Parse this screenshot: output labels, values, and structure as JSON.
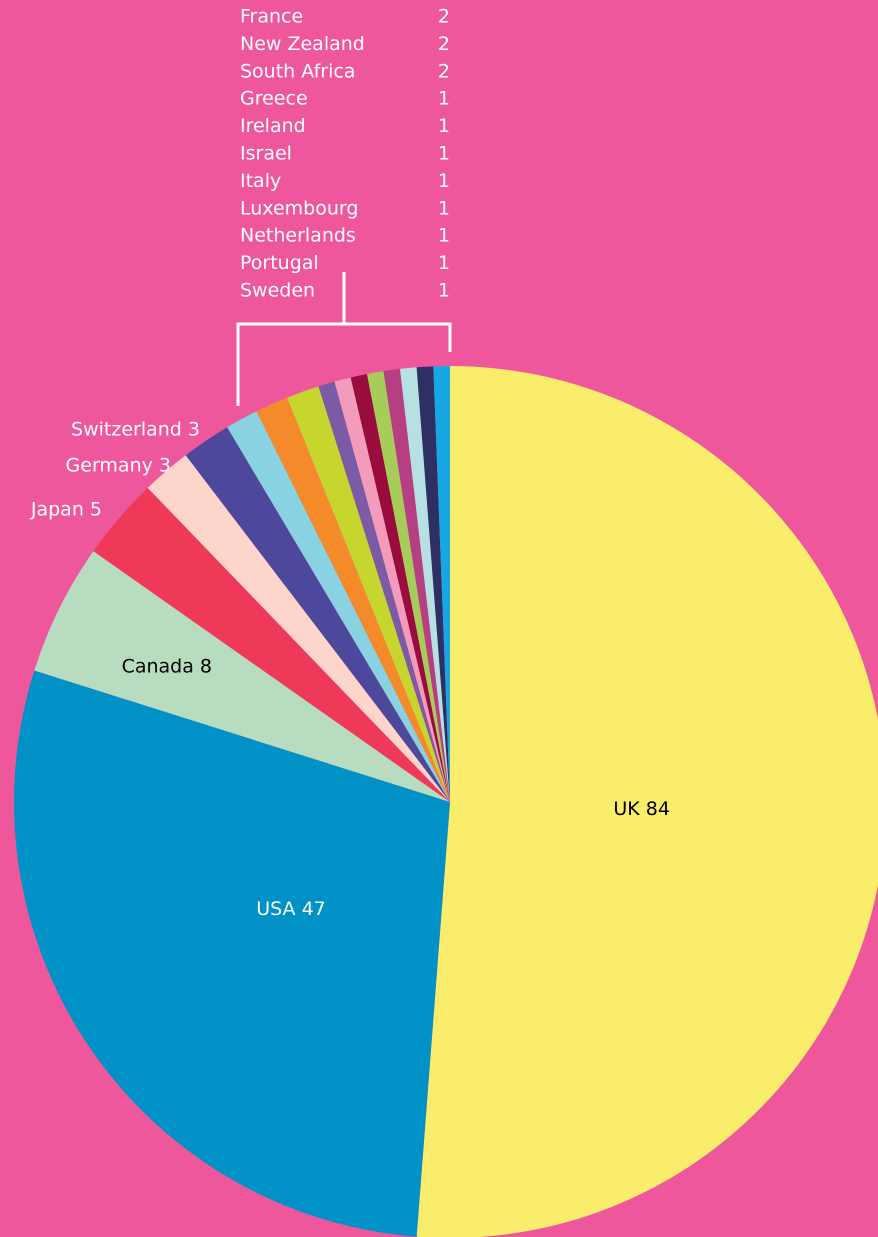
{
  "chart_data": {
    "type": "pie",
    "slices": [
      {
        "label": "UK",
        "value": 84,
        "color": "#f9ed6b",
        "text_color": "#000000"
      },
      {
        "label": "USA",
        "value": 47,
        "color": "#0092c6",
        "text_color": "#ffffff"
      },
      {
        "label": "Canada",
        "value": 8,
        "color": "#b7dcbf",
        "text_color": "#000000"
      },
      {
        "label": "Japan",
        "value": 5,
        "color": "#ee3a58",
        "text_color": "#ffffff"
      },
      {
        "label": "Germany",
        "value": 3,
        "color": "#fdd5cb",
        "text_color": "#ffffff"
      },
      {
        "label": "Switzerland",
        "value": 3,
        "color": "#4e489c",
        "text_color": "#ffffff"
      },
      {
        "label": "France",
        "value": 2,
        "color": "#88d2e2",
        "text_color": "#ffffff"
      },
      {
        "label": "New Zealand",
        "value": 2,
        "color": "#f48a2a",
        "text_color": "#ffffff"
      },
      {
        "label": "South Africa",
        "value": 2,
        "color": "#c6d62f",
        "text_color": "#ffffff"
      },
      {
        "label": "Greece",
        "value": 1,
        "color": "#7b5ba5",
        "text_color": "#ffffff"
      },
      {
        "label": "Ireland",
        "value": 1,
        "color": "#f29bbb",
        "text_color": "#ffffff"
      },
      {
        "label": "Israel",
        "value": 1,
        "color": "#990c3e",
        "text_color": "#ffffff"
      },
      {
        "label": "Italy",
        "value": 1,
        "color": "#a6cd57",
        "text_color": "#ffffff"
      },
      {
        "label": "Luxembourg",
        "value": 1,
        "color": "#b63e83",
        "text_color": "#ffffff"
      },
      {
        "label": "Netherlands",
        "value": 1,
        "color": "#b6e1e3",
        "text_color": "#ffffff"
      },
      {
        "label": "Portugal",
        "value": 1,
        "color": "#2e3064",
        "text_color": "#ffffff"
      },
      {
        "label": "Sweden",
        "value": 1,
        "color": "#17a8e3",
        "text_color": "#ffffff"
      }
    ],
    "outside_labels": [
      {
        "label": "Canada",
        "value": 8
      },
      {
        "label": "Japan",
        "value": 5
      },
      {
        "label": "Germany",
        "value": 3
      },
      {
        "label": "Switzerland",
        "value": 3
      }
    ],
    "legend_list": [
      {
        "label": "France",
        "value": 2
      },
      {
        "label": "New Zealand",
        "value": 2
      },
      {
        "label": "South Africa",
        "value": 2
      },
      {
        "label": "Greece",
        "value": 1
      },
      {
        "label": "Ireland",
        "value": 1
      },
      {
        "label": "Israel",
        "value": 1
      },
      {
        "label": "Italy",
        "value": 1
      },
      {
        "label": "Luxembourg",
        "value": 1
      },
      {
        "label": "Netherlands",
        "value": 1
      },
      {
        "label": "Portugal",
        "value": 1
      },
      {
        "label": "Sweden",
        "value": 1
      }
    ],
    "background": "#ef579c",
    "legend_color": "#ffffff"
  }
}
